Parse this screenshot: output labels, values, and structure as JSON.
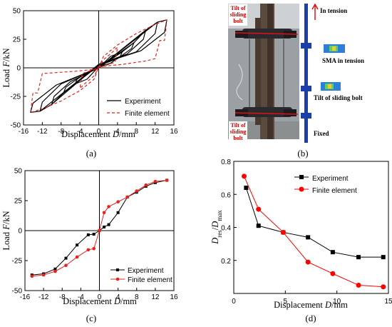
{
  "captions": {
    "a": "(a)",
    "b": "(b)",
    "c": "(c)",
    "d": "(d)"
  },
  "colors": {
    "experiment": "#000000",
    "fe_a": "#e8231e",
    "fe_c": "#e8231e",
    "fe_d": "#ff0000"
  },
  "photo": {
    "label_top": [
      "Tilt of",
      "sliding",
      "bolt"
    ],
    "label_bottom": [
      "Tilt of",
      "sliding",
      "bolt"
    ],
    "in_tension": "In tension",
    "sma_tension": "SMA in tension",
    "tilt_sliding": "Tilt of sliding bolt",
    "fixed": "Fixed"
  },
  "chart_data": [
    {
      "id": "a",
      "type": "line",
      "xlabel_pre": "Displacement ",
      "xlabel_var": "D",
      "xlabel_post": "/mm",
      "ylabel_pre": "Load ",
      "ylabel_var": "F",
      "ylabel_post": "/kN",
      "xlim": [
        -16,
        16
      ],
      "ylim": [
        -50,
        50
      ],
      "xticks": [
        "-16",
        "-12",
        "-8",
        "-4",
        "0",
        "4",
        "8",
        "12",
        "16"
      ],
      "yticks": [
        "50",
        "25",
        "0",
        "-25",
        "-50"
      ],
      "legend": [
        "Experiment",
        "Finite element"
      ],
      "legend_position": "bottom-right",
      "series": [
        {
          "name": "Experiment",
          "style": "solid",
          "loops": [
            [
              [
                0,
                0
              ],
              [
                2.5,
                10
              ],
              [
                5,
                14
              ],
              [
                4.6,
                10
              ],
              [
                2.5,
                4
              ],
              [
                0,
                1
              ],
              [
                -2.5,
                -10
              ],
              [
                -5,
                -14
              ],
              [
                -4.6,
                -10
              ],
              [
                -2.5,
                -4
              ],
              [
                0,
                0
              ]
            ],
            [
              [
                0,
                0
              ],
              [
                5,
                14
              ],
              [
                7.5,
                22
              ],
              [
                7,
                17
              ],
              [
                4,
                8
              ],
              [
                0,
                2
              ],
              [
                -5,
                -14
              ],
              [
                -7.5,
                -22
              ],
              [
                -7,
                -17
              ],
              [
                -4,
                -8
              ],
              [
                0,
                0
              ]
            ],
            [
              [
                0,
                0
              ],
              [
                7.5,
                22
              ],
              [
                10,
                33
              ],
              [
                9.5,
                25
              ],
              [
                6,
                12
              ],
              [
                0,
                3
              ],
              [
                -7.5,
                -22
              ],
              [
                -10,
                -32
              ],
              [
                -9.5,
                -25
              ],
              [
                -6,
                -12
              ],
              [
                0,
                0
              ]
            ],
            [
              [
                0,
                0
              ],
              [
                10,
                33
              ],
              [
                12.5,
                40
              ],
              [
                12,
                30
              ],
              [
                8,
                14
              ],
              [
                0,
                3
              ],
              [
                -10,
                -32
              ],
              [
                -12.5,
                -38
              ],
              [
                -12,
                -30
              ],
              [
                -8,
                -14
              ],
              [
                0,
                0
              ]
            ],
            [
              [
                0,
                0
              ],
              [
                12.5,
                40
              ],
              [
                14.5,
                42
              ],
              [
                14,
                31
              ],
              [
                9,
                15
              ],
              [
                0,
                3
              ],
              [
                -12.5,
                -38
              ],
              [
                -14.5,
                -39
              ],
              [
                -14,
                -31
              ],
              [
                -9,
                -15
              ],
              [
                0,
                0
              ]
            ]
          ]
        },
        {
          "name": "Finite element",
          "style": "dashed",
          "loops": [
            [
              [
                0,
                0
              ],
              [
                1,
                10
              ],
              [
                4,
                20
              ],
              [
                8,
                30
              ],
              [
                12,
                38
              ],
              [
                14.5,
                42
              ],
              [
                14,
                24
              ],
              [
                13,
                24
              ],
              [
                12,
                8
              ],
              [
                10,
                6
              ],
              [
                5,
                3
              ],
              [
                0,
                1
              ],
              [
                -1,
                -10
              ],
              [
                -4,
                -20
              ],
              [
                -8,
                -29
              ],
              [
                -12,
                -36
              ],
              [
                -14.5,
                -39
              ],
              [
                -14,
                -22
              ],
              [
                -13,
                -22
              ],
              [
                -12,
                -5
              ],
              [
                -5,
                -3
              ],
              [
                0,
                -1
              ]
            ],
            [
              [
                0,
                0
              ],
              [
                1,
                7
              ],
              [
                3,
                14
              ],
              [
                4,
                18
              ],
              [
                3.5,
                5
              ],
              [
                0,
                0
              ],
              [
                -1,
                -7
              ],
              [
                -3,
                -14
              ],
              [
                -4,
                -18
              ],
              [
                -3.5,
                -5
              ],
              [
                0,
                0
              ]
            ]
          ]
        }
      ]
    },
    {
      "id": "c",
      "type": "line",
      "xlabel_pre": "Displacement ",
      "xlabel_var": "D",
      "xlabel_post": "/mm",
      "ylabel_pre": "Load ",
      "ylabel_var": "F",
      "ylabel_post": "/kN",
      "xlim": [
        -16,
        16
      ],
      "ylim": [
        -50,
        50
      ],
      "xticks": [
        "-16",
        "-12",
        "-8",
        "-4",
        "0",
        "4",
        "8",
        "12",
        "16"
      ],
      "yticks": [
        "50",
        "25",
        "0",
        "-25",
        "-50"
      ],
      "legend": [
        "Experiment",
        "Finite element"
      ],
      "legend_position": "bottom-right",
      "series": [
        {
          "name": "Experiment",
          "marker": "square",
          "x": [
            -14.5,
            -12,
            -9.5,
            -7.2,
            -4.8,
            -2.4,
            -1.2,
            0,
            1,
            2,
            4,
            6,
            8,
            10,
            12,
            14.5
          ],
          "y": [
            -37,
            -36,
            -32,
            -23,
            -12,
            -3.5,
            -3,
            0,
            3,
            5,
            15,
            28,
            32,
            37,
            40,
            42
          ]
        },
        {
          "name": "Finite element",
          "marker": "circle",
          "x": [
            -14.5,
            -12,
            -9.5,
            -7.2,
            -4.8,
            -2.4,
            -1.2,
            0,
            1,
            2,
            4,
            6,
            8,
            10,
            12,
            14.5
          ],
          "y": [
            -38,
            -37,
            -34,
            -29,
            -22,
            -16,
            -15,
            0,
            15,
            20,
            24,
            28,
            33,
            38,
            41,
            42
          ]
        }
      ]
    },
    {
      "id": "d",
      "type": "line",
      "xlabel_pre": "Displacement ",
      "xlabel_var": "D",
      "xlabel_post": "/mm",
      "ylabel": "Dres/Dmax",
      "xlim": [
        0,
        15
      ],
      "ylim": [
        0,
        0.8
      ],
      "xticks": [
        "0",
        "5",
        "10",
        "15"
      ],
      "yticks": [
        "0.2",
        "0.4",
        "0.6",
        "0.8"
      ],
      "legend": [
        "Experiment",
        "Finite element"
      ],
      "legend_position": "top-right",
      "series": [
        {
          "name": "Experiment",
          "marker": "square",
          "x": [
            1.2,
            2.4,
            4.8,
            7.2,
            9.6,
            12.1,
            14.5
          ],
          "y": [
            0.64,
            0.41,
            0.37,
            0.34,
            0.25,
            0.22,
            0.22
          ]
        },
        {
          "name": "Finite element",
          "marker": "circle",
          "x": [
            1.0,
            2.4,
            4.8,
            7.2,
            9.6,
            12.1,
            14.5
          ],
          "y": [
            0.71,
            0.51,
            0.37,
            0.19,
            0.12,
            0.05,
            0.04
          ]
        }
      ]
    }
  ]
}
